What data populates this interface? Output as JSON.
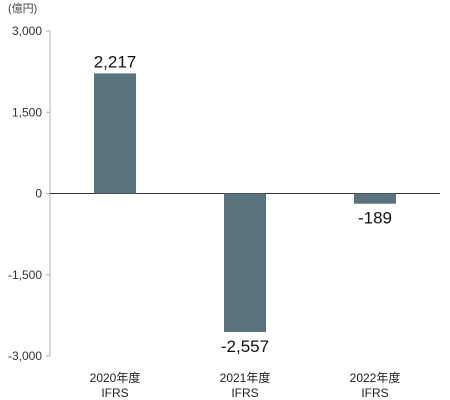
{
  "chart_data": {
    "type": "bar",
    "unit_label": "(億円)",
    "categories": [
      {
        "line1": "2020年度",
        "line2": "IFRS"
      },
      {
        "line1": "2021年度",
        "line2": "IFRS"
      },
      {
        "line1": "2022年度",
        "line2": "IFRS"
      }
    ],
    "values": [
      2217,
      -2557,
      -189
    ],
    "value_labels": [
      "2,217",
      "-2,557",
      "-189"
    ],
    "ylim": [
      -3000,
      3000
    ],
    "yticks": [
      3000,
      1500,
      0,
      -1500,
      -3000
    ],
    "ytick_labels": [
      "3,000",
      "1,500",
      "0",
      "-1,500",
      "-3,000"
    ],
    "bar_color": "#58737d",
    "grid": false,
    "zero_line": true,
    "title": "",
    "xlabel": "",
    "ylabel": ""
  }
}
